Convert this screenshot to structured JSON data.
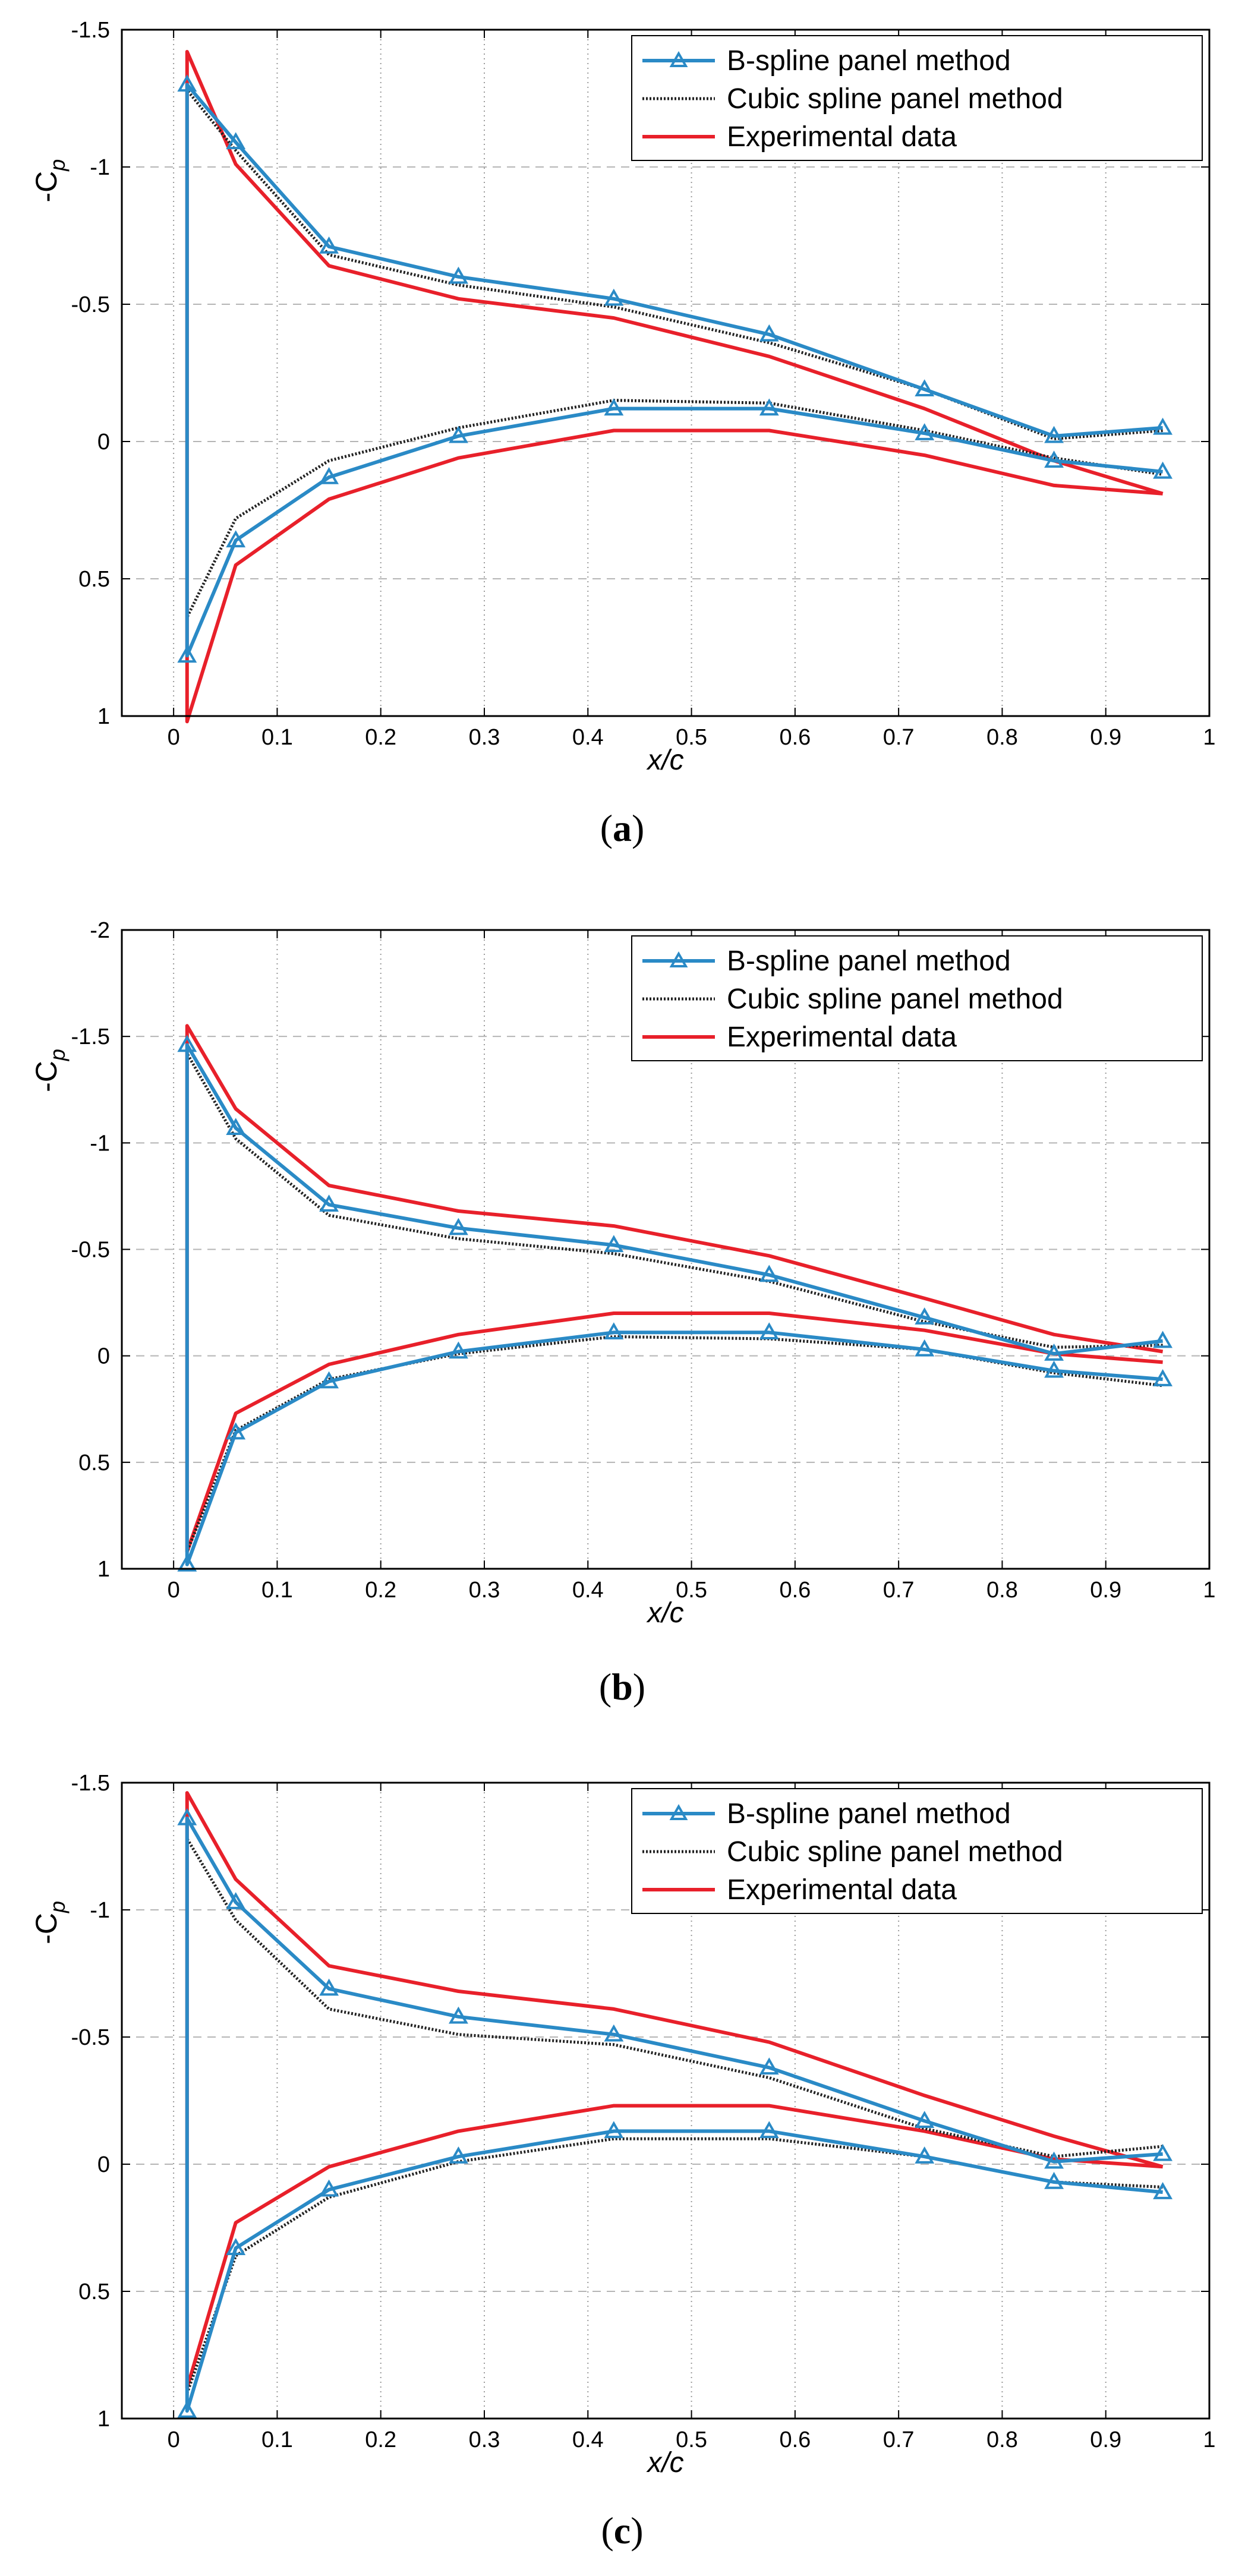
{
  "chart_data": [
    {
      "type": "line",
      "caption": "(a)",
      "caption_letter": "a",
      "xlabel": "x/c",
      "ylabel": "-C",
      "ylabel_sub": "p",
      "xlim": [
        -0.05,
        1
      ],
      "ylim": [
        -1.5,
        1
      ],
      "y_inverted": true,
      "xticks": [
        0,
        0.1,
        0.2,
        0.3,
        0.4,
        0.5,
        0.6,
        0.7,
        0.8,
        0.9,
        1
      ],
      "xtick_labels": [
        "0",
        "0.1",
        "0.2",
        "0.3",
        "0.4",
        "0.5",
        "0.6",
        "0.7",
        "0.8",
        "0.9",
        "1"
      ],
      "yticks": [
        -1.5,
        -1,
        -0.5,
        0,
        0.5,
        1
      ],
      "ytick_labels": [
        "-1.5",
        "-1",
        "-0.5",
        "0",
        "0.5",
        "1"
      ],
      "legend_position": "top-right",
      "series": [
        {
          "name": "B-spline panel method",
          "color": "#2a8ac6",
          "style": "solid-triangle",
          "x": [
            0.955,
            0.85,
            0.725,
            0.575,
            0.425,
            0.275,
            0.15,
            0.06,
            0.013,
            0.013,
            0.06,
            0.15,
            0.275,
            0.425,
            0.575,
            0.725,
            0.85,
            0.955
          ],
          "y": [
            -0.05,
            -0.02,
            -0.19,
            -0.39,
            -0.52,
            -0.6,
            -0.71,
            -1.09,
            -1.3,
            0.78,
            0.36,
            0.13,
            -0.02,
            -0.12,
            -0.12,
            -0.03,
            0.07,
            0.11
          ]
        },
        {
          "name": "Cubic spline panel method",
          "color": "#222222",
          "style": "dotted",
          "x": [
            0.955,
            0.85,
            0.725,
            0.575,
            0.425,
            0.275,
            0.15,
            0.06,
            0.013,
            0.013,
            0.06,
            0.15,
            0.275,
            0.425,
            0.575,
            0.725,
            0.85,
            0.955
          ],
          "y": [
            -0.04,
            -0.01,
            -0.19,
            -0.36,
            -0.49,
            -0.57,
            -0.68,
            -1.06,
            -1.28,
            0.64,
            0.28,
            0.07,
            -0.05,
            -0.15,
            -0.14,
            -0.04,
            0.06,
            0.12
          ]
        },
        {
          "name": "Experimental data",
          "color": "#e8202a",
          "style": "solid",
          "x": [
            0.955,
            0.85,
            0.725,
            0.575,
            0.425,
            0.275,
            0.15,
            0.06,
            0.013,
            0.013,
            0.06,
            0.15,
            0.275,
            0.425,
            0.575,
            0.725,
            0.85,
            0.955
          ],
          "y": [
            0.19,
            0.07,
            -0.12,
            -0.31,
            -0.45,
            -0.52,
            -0.64,
            -1.01,
            -1.42,
            1.02,
            0.45,
            0.21,
            0.06,
            -0.04,
            -0.04,
            0.05,
            0.16,
            0.19
          ]
        }
      ]
    },
    {
      "type": "line",
      "caption": "(b)",
      "caption_letter": "b",
      "xlabel": "x/c",
      "ylabel": "-C",
      "ylabel_sub": "p",
      "xlim": [
        -0.05,
        1
      ],
      "ylim": [
        -2,
        1
      ],
      "y_inverted": true,
      "xticks": [
        0,
        0.1,
        0.2,
        0.3,
        0.4,
        0.5,
        0.6,
        0.7,
        0.8,
        0.9,
        1
      ],
      "xtick_labels": [
        "0",
        "0.1",
        "0.2",
        "0.3",
        "0.4",
        "0.5",
        "0.6",
        "0.7",
        "0.8",
        "0.9",
        "1"
      ],
      "yticks": [
        -2,
        -1.5,
        -1,
        -0.5,
        0,
        0.5,
        1
      ],
      "ytick_labels": [
        "-2",
        "-1.5",
        "-1",
        "-0.5",
        "0",
        "0.5",
        "1"
      ],
      "legend_position": "top-right",
      "series": [
        {
          "name": "B-spline panel method",
          "color": "#2a8ac6",
          "style": "solid-triangle",
          "x": [
            0.955,
            0.85,
            0.725,
            0.575,
            0.425,
            0.275,
            0.15,
            0.06,
            0.013,
            0.013,
            0.06,
            0.15,
            0.275,
            0.425,
            0.575,
            0.725,
            0.85,
            0.955
          ],
          "y": [
            -0.07,
            -0.01,
            -0.18,
            -0.38,
            -0.52,
            -0.6,
            -0.71,
            -1.07,
            -1.46,
            0.98,
            0.36,
            0.12,
            -0.02,
            -0.11,
            -0.11,
            -0.03,
            0.07,
            0.11
          ]
        },
        {
          "name": "Cubic spline panel method",
          "color": "#222222",
          "style": "dotted",
          "x": [
            0.955,
            0.85,
            0.725,
            0.575,
            0.425,
            0.275,
            0.15,
            0.06,
            0.013,
            0.013,
            0.06,
            0.15,
            0.275,
            0.425,
            0.575,
            0.725,
            0.85,
            0.955
          ],
          "y": [
            -0.05,
            -0.04,
            -0.16,
            -0.35,
            -0.48,
            -0.55,
            -0.66,
            -1.02,
            -1.42,
            0.92,
            0.35,
            0.11,
            -0.01,
            -0.09,
            -0.08,
            -0.03,
            0.08,
            0.14
          ]
        },
        {
          "name": "Experimental data",
          "color": "#e8202a",
          "style": "solid",
          "x": [
            0.955,
            0.85,
            0.725,
            0.575,
            0.425,
            0.275,
            0.15,
            0.06,
            0.013,
            0.013,
            0.06,
            0.15,
            0.275,
            0.425,
            0.575,
            0.725,
            0.85,
            0.955
          ],
          "y": [
            -0.02,
            -0.1,
            -0.27,
            -0.47,
            -0.61,
            -0.68,
            -0.8,
            -1.16,
            -1.55,
            0.92,
            0.27,
            0.04,
            -0.1,
            -0.2,
            -0.2,
            -0.12,
            -0.01,
            0.03
          ]
        }
      ]
    },
    {
      "type": "line",
      "caption": "(c)",
      "caption_letter": "c",
      "xlabel": "x/c",
      "ylabel": "-C",
      "ylabel_sub": "p",
      "xlim": [
        -0.05,
        1
      ],
      "ylim": [
        -1.5,
        1
      ],
      "y_inverted": true,
      "xticks": [
        0,
        0.1,
        0.2,
        0.3,
        0.4,
        0.5,
        0.6,
        0.7,
        0.8,
        0.9,
        1
      ],
      "xtick_labels": [
        "0",
        "0.1",
        "0.2",
        "0.3",
        "0.4",
        "0.5",
        "0.6",
        "0.7",
        "0.8",
        "0.9",
        "1"
      ],
      "yticks": [
        -1.5,
        -1,
        -0.5,
        0,
        0.5,
        1
      ],
      "ytick_labels": [
        "-1.5",
        "-1",
        "-0.5",
        "0",
        "0.5",
        "1"
      ],
      "legend_position": "top-right",
      "series": [
        {
          "name": "B-spline panel method",
          "color": "#2a8ac6",
          "style": "solid-triangle",
          "x": [
            0.955,
            0.85,
            0.725,
            0.575,
            0.425,
            0.275,
            0.15,
            0.06,
            0.013,
            0.013,
            0.06,
            0.15,
            0.275,
            0.425,
            0.575,
            0.725,
            0.85,
            0.955
          ],
          "y": [
            -0.04,
            -0.01,
            -0.17,
            -0.38,
            -0.51,
            -0.58,
            -0.69,
            -1.03,
            -1.36,
            0.97,
            0.33,
            0.1,
            -0.03,
            -0.13,
            -0.13,
            -0.03,
            0.07,
            0.11
          ]
        },
        {
          "name": "Cubic spline panel method",
          "color": "#222222",
          "style": "dotted",
          "x": [
            0.955,
            0.85,
            0.725,
            0.575,
            0.425,
            0.275,
            0.15,
            0.06,
            0.013,
            0.013,
            0.06,
            0.15,
            0.275,
            0.425,
            0.575,
            0.725,
            0.85,
            0.955
          ],
          "y": [
            -0.07,
            -0.03,
            -0.14,
            -0.34,
            -0.47,
            -0.51,
            -0.61,
            -0.96,
            -1.28,
            0.9,
            0.36,
            0.13,
            -0.01,
            -0.1,
            -0.1,
            -0.03,
            0.07,
            0.09
          ]
        },
        {
          "name": "Experimental data",
          "color": "#e8202a",
          "style": "solid",
          "x": [
            0.955,
            0.85,
            0.725,
            0.575,
            0.425,
            0.275,
            0.15,
            0.06,
            0.013,
            0.013,
            0.06,
            0.15,
            0.275,
            0.425,
            0.575,
            0.725,
            0.85,
            0.955
          ],
          "y": [
            0.01,
            -0.11,
            -0.27,
            -0.48,
            -0.61,
            -0.68,
            -0.78,
            -1.12,
            -1.46,
            0.88,
            0.23,
            0.01,
            -0.13,
            -0.23,
            -0.23,
            -0.13,
            -0.02,
            0.01
          ]
        }
      ]
    }
  ]
}
